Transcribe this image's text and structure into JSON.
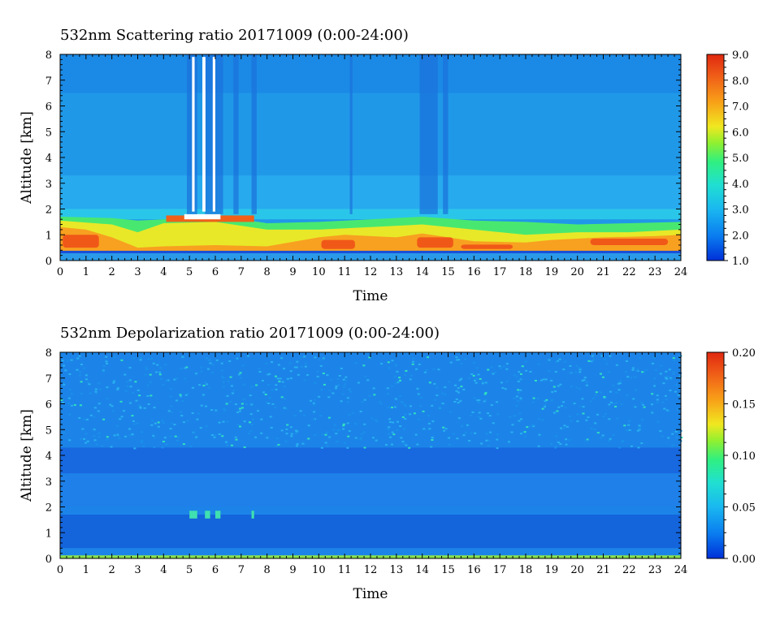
{
  "chart_data": [
    {
      "type": "heatmap",
      "title": "532nm Scattering ratio  20171009 (0:00-24:00)",
      "xlabel": "Time",
      "ylabel": "Altitude [km]",
      "xlim": [
        0,
        24
      ],
      "ylim": [
        0,
        8
      ],
      "x_ticks": [
        "0",
        "1",
        "2",
        "3",
        "4",
        "5",
        "6",
        "7",
        "8",
        "9",
        "10",
        "11",
        "12",
        "13",
        "14",
        "15",
        "16",
        "17",
        "18",
        "19",
        "20",
        "21",
        "22",
        "23",
        "24"
      ],
      "y_ticks": [
        "0",
        "1",
        "2",
        "3",
        "4",
        "5",
        "6",
        "7",
        "8"
      ],
      "colorbar": {
        "min": 1.0,
        "max": 9.0,
        "ticks": [
          "1.0",
          "2.0",
          "3.0",
          "4.0",
          "5.0",
          "6.0",
          "7.0",
          "8.0",
          "9.0"
        ],
        "colors": [
          "#0030d8",
          "#0a7cf0",
          "#1ab8f0",
          "#20e0d0",
          "#30f080",
          "#90f030",
          "#f0e820",
          "#f8a018",
          "#f06018",
          "#e02810"
        ]
      }
    },
    {
      "type": "heatmap",
      "title": "532nm Depolarization ratio  20171009 (0:00-24:00)",
      "xlabel": "Time",
      "ylabel": "Altitude [km]",
      "xlim": [
        0,
        24
      ],
      "ylim": [
        0,
        8
      ],
      "x_ticks": [
        "0",
        "1",
        "2",
        "3",
        "4",
        "5",
        "6",
        "7",
        "8",
        "9",
        "10",
        "11",
        "12",
        "13",
        "14",
        "15",
        "16",
        "17",
        "18",
        "19",
        "20",
        "21",
        "22",
        "23",
        "24"
      ],
      "y_ticks": [
        "0",
        "1",
        "2",
        "3",
        "4",
        "5",
        "6",
        "7",
        "8"
      ],
      "colorbar": {
        "min": 0.0,
        "max": 0.2,
        "ticks": [
          "0.00",
          "0.05",
          "0.10",
          "0.15",
          "0.20"
        ],
        "colors": [
          "#0030d8",
          "#0a7cf0",
          "#1ab8f0",
          "#20e0d0",
          "#30f080",
          "#90f030",
          "#f0e820",
          "#f8a018",
          "#f06018",
          "#e02810"
        ]
      }
    }
  ]
}
